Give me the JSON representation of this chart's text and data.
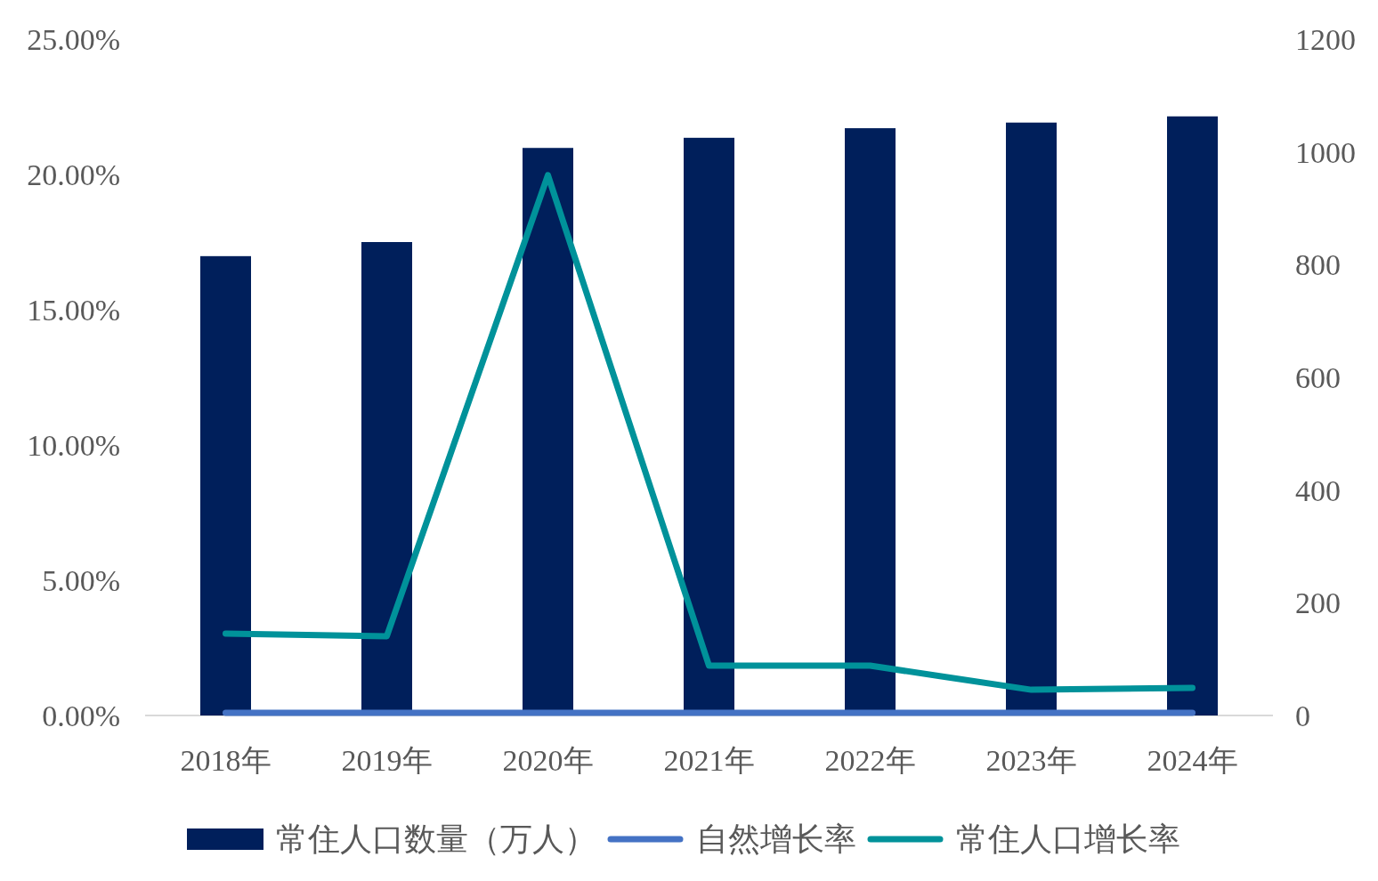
{
  "chart_data": {
    "type": "bar",
    "categories": [
      "2018年",
      "2019年",
      "2020年",
      "2021年",
      "2022年",
      "2023年",
      "2024年"
    ],
    "series": [
      {
        "name": "常住人口数量（万人）",
        "axis": "y2",
        "color": "#001f5b",
        "values": [
          815,
          840,
          1007,
          1025,
          1042,
          1052,
          1063
        ]
      },
      {
        "name": "自然增长率",
        "type": "line",
        "axis": "y",
        "color": "#4472c4",
        "values": [
          0.1,
          0.1,
          0.1,
          0.1,
          0.1,
          0.1,
          0.1
        ]
      },
      {
        "name": "常住人口增长率",
        "type": "line",
        "axis": "y",
        "color": "#00929a",
        "values": [
          3.03,
          2.93,
          19.97,
          1.84,
          1.84,
          0.95,
          1.02
        ]
      }
    ],
    "ylim": [
      0,
      25
    ],
    "yticks": [
      {
        "value": 0,
        "label": "0.00%"
      },
      {
        "value": 5,
        "label": "5.00%"
      },
      {
        "value": 10,
        "label": "10.00%"
      },
      {
        "value": 15,
        "label": "15.00%"
      },
      {
        "value": 20,
        "label": "20.00%"
      },
      {
        "value": 25,
        "label": "25.00%"
      }
    ],
    "y2lim": [
      0,
      1200
    ],
    "y2ticks": [
      0,
      200,
      400,
      600,
      800,
      1000,
      1200
    ],
    "grid": false,
    "legend": "bottom"
  }
}
